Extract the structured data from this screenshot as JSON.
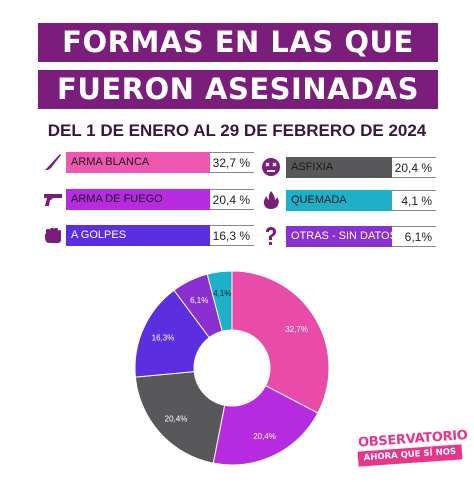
{
  "title_line1": "FORMAS EN LAS QUE",
  "title_line2": "FUERON ASESINADAS",
  "subtitle": "DEL 1 DE ENERO AL 29 DE FEBRERO DE 2024",
  "logo": {
    "line1": "OBSERVATORIO",
    "line2": "AHORA QUE SÍ NOS VEN"
  },
  "chart_data": {
    "type": "pie",
    "title": "FORMAS EN LAS QUE FUERON ASESINADAS",
    "subtitle": "DEL 1 DE ENERO AL 29 DE FEBRERO DE 2024",
    "categories": [
      "ARMA BLANCA",
      "ARMA DE FUEGO",
      "ASFIXIA",
      "A GOLPES",
      "OTRAS - SIN DATOS",
      "QUEMADA"
    ],
    "values": [
      32.7,
      20.4,
      20.4,
      16.3,
      6.1,
      4.1
    ],
    "slice_labels": [
      "32,7%",
      "20,4%",
      "20,4%",
      "16,3%",
      "6,1%",
      "4,1%"
    ],
    "colors": [
      "#e84ba8",
      "#b62be0",
      "#58585a",
      "#5b2ee0",
      "#8a2fd0",
      "#1fb0c9"
    ],
    "legend_placement": "top"
  },
  "legend": [
    {
      "label": "ARMA BLANCA",
      "pct": "32,7 %",
      "color": "#ee57b0",
      "icon": "knife-icon"
    },
    {
      "label": "ARMA DE FUEGO",
      "pct": "20,4 %",
      "color": "#b62be0",
      "icon": "gun-icon"
    },
    {
      "label": "A GOLPES",
      "pct": "16,3 %",
      "color": "#5b2ee0",
      "icon": "fist-icon"
    },
    {
      "label": "ASFIXIA",
      "pct": "20,4 %",
      "color": "#58585a",
      "icon": "suffocation-face-icon"
    },
    {
      "label": "QUEMADA",
      "pct": "4,1 %",
      "color": "#1fb0c9",
      "icon": "flame-icon"
    },
    {
      "label": "OTRAS - SIN DATOS",
      "pct": "6,1%",
      "color": "#8a2fd0",
      "icon": "question-mark-icon"
    }
  ]
}
